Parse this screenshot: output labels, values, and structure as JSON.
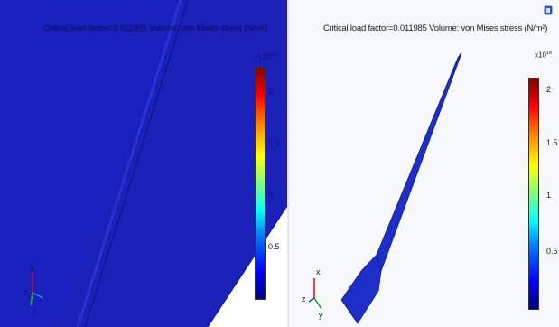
{
  "left_panel": {
    "title": "Critical load factor=0.011985   Volume: von Mises stress (N/m²)",
    "colorbar_exponent_base": "x10",
    "colorbar_exponent_power": "18",
    "ticks": [
      "2",
      "1.5",
      "1",
      "0.5"
    ],
    "axes": {
      "x": "x",
      "y": "y",
      "z": "z"
    }
  },
  "right_panel": {
    "title": "Critical load factor=0.011985   Volume: von Mises stress (N/m²)",
    "colorbar_exponent_base": "x10",
    "colorbar_exponent_power": "18",
    "ticks": [
      "2",
      "1.5",
      "1",
      "0.5"
    ],
    "axes": {
      "x": "x",
      "y": "y",
      "z": "z"
    }
  },
  "colors": {
    "left_background": "#1a20b8",
    "right_background": "#f6f8fa",
    "plate_fill": "#1d2fc8",
    "colormap": "rainbow"
  },
  "icons": {
    "toolbar_icon": "window-icon"
  }
}
